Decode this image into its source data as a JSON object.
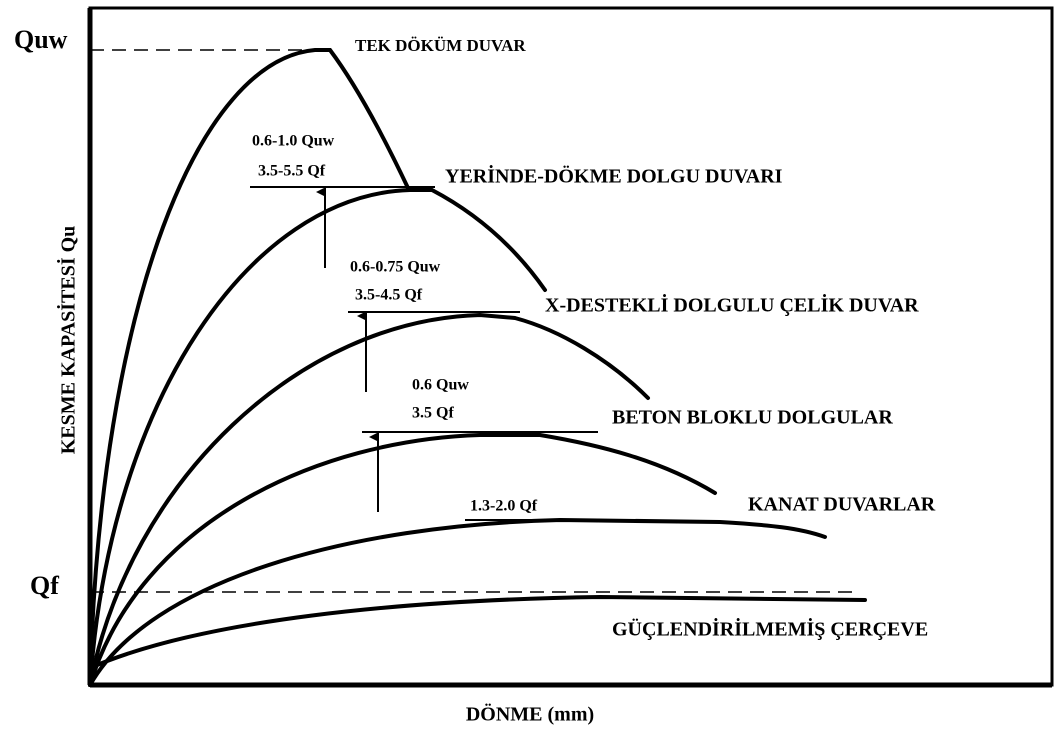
{
  "y_axis": {
    "label": "KESME KAPASİTESİ Qu",
    "levels": [
      "Quw",
      "Qf"
    ]
  },
  "x_axis": {
    "label": "DÖNME (mm)"
  },
  "curves": [
    {
      "label": "TEK DÖKÜM DUVAR"
    },
    {
      "label": "YERİNDE-DÖKME DOLGU DUVARI"
    },
    {
      "label": "X-DESTEKLİ DOLGULU ÇELİK DUVAR"
    },
    {
      "label": "BETON BLOKLU DOLGULAR"
    },
    {
      "label": "KANAT DUVARLAR"
    },
    {
      "label": "GÜÇLENDİRİLMEMİŞ ÇERÇEVE"
    }
  ],
  "annotations": [
    {
      "lines": [
        "0.6-1.0 Quw",
        "3.5-5.5 Qf"
      ]
    },
    {
      "lines": [
        "0.6-0.75 Quw",
        "3.5-4.5 Qf"
      ]
    },
    {
      "lines": [
        "0.6 Quw",
        "3.5 Qf"
      ]
    },
    {
      "lines": [
        "1.3-2.0 Qf"
      ]
    }
  ]
}
